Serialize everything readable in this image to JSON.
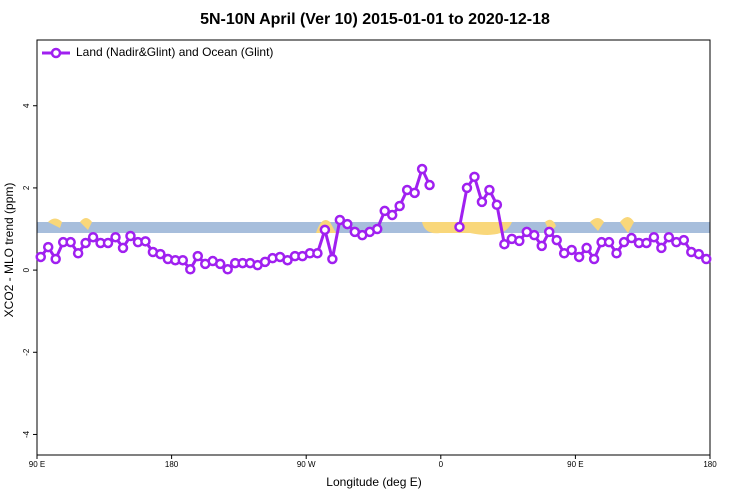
{
  "chart_data": {
    "type": "line",
    "title": "5N-10N April (Ver 10)   2015-01-01 to 2020-12-18",
    "x_label": "Longitude (deg E)",
    "y_label": "XCO2 - MLO trend (ppm)",
    "xlim": [
      90,
      540
    ],
    "ylim": [
      -4.5,
      5.6
    ],
    "xticks": [
      {
        "value": 90,
        "label": "90 E"
      },
      180,
      {
        "value": 270,
        "label": "90 W"
      },
      {
        "value": 360,
        "label": "0"
      },
      {
        "value": 450,
        "label": "90 E"
      },
      {
        "value": 540,
        "label": "180"
      }
    ],
    "yticks": [
      -4,
      -2,
      0,
      2,
      4
    ],
    "legend": "top-left",
    "x": [
      92.5,
      97.5,
      102.5,
      107.5,
      112.5,
      117.5,
      122.5,
      127.5,
      132.5,
      137.5,
      142.5,
      147.5,
      152.5,
      157.5,
      162.5,
      167.5,
      172.5,
      177.5,
      182.5,
      187.5,
      192.5,
      197.5,
      202.5,
      207.5,
      212.5,
      217.5,
      222.5,
      227.5,
      232.5,
      237.5,
      242.5,
      247.5,
      252.5,
      257.5,
      262.5,
      267.5,
      272.5,
      277.5,
      282.5,
      287.5,
      292.5,
      297.5,
      302.5,
      307.5,
      312.5,
      317.5,
      322.5,
      327.5,
      332.5,
      337.5,
      342.5,
      347.5,
      352.5,
      357.5,
      362.5,
      367.5,
      372.5,
      377.5,
      382.5,
      387.5,
      392.5,
      397.5,
      402.5,
      407.5,
      412.5,
      417.5,
      422.5,
      427.5,
      432.5,
      437.5,
      442.5,
      447.5,
      452.5,
      457.5,
      462.5,
      467.5,
      472.5,
      477.5,
      482.5,
      487.5,
      492.5,
      497.5,
      502.5,
      507.5,
      512.5,
      517.5,
      522.5,
      527.5,
      532.5,
      537.5
    ],
    "series": [
      {
        "name": "Land (Nadir&Glint) and Ocean (Glint)",
        "color": "#a020f0",
        "values": [
          0.32,
          0.56,
          0.27,
          0.68,
          0.68,
          0.41,
          0.66,
          0.8,
          0.66,
          0.66,
          0.8,
          0.54,
          0.83,
          0.68,
          0.7,
          0.44,
          0.39,
          0.27,
          0.24,
          0.24,
          0.02,
          0.34,
          0.15,
          0.22,
          0.15,
          0.02,
          0.17,
          0.17,
          0.17,
          0.12,
          0.2,
          0.29,
          0.32,
          0.24,
          0.34,
          0.34,
          0.41,
          0.41,
          0.98,
          0.27,
          1.22,
          1.12,
          0.93,
          0.85,
          0.93,
          1.0,
          1.44,
          1.34,
          1.56,
          1.95,
          1.88,
          2.46,
          2.07,
          null,
          null,
          null,
          1.05,
          2.0,
          2.27,
          1.66,
          1.95,
          1.59,
          0.63,
          0.76,
          0.71,
          0.93,
          0.85,
          0.59,
          0.93,
          0.73,
          0.41,
          0.49,
          0.32,
          0.54,
          0.27,
          0.68,
          0.68,
          0.41,
          0.68,
          0.78,
          0.66,
          0.66,
          0.8,
          0.54,
          0.8,
          0.68,
          0.73,
          0.44,
          0.39,
          0.27
        ]
      }
    ]
  }
}
